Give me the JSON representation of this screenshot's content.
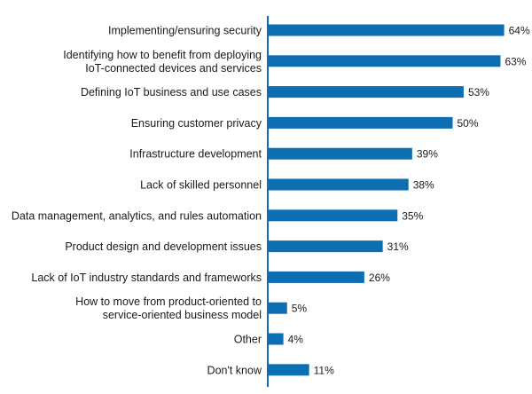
{
  "chart_data": {
    "type": "bar",
    "orientation": "horizontal",
    "categories": [
      "Implementing/ensuring security",
      "Identifying how to benefit from deploying IoT-connected devices and services",
      "Defining IoT business and use cases",
      "Ensuring customer privacy",
      "Infrastructure development",
      "Lack of skilled personnel",
      "Data management, analytics, and rules automation",
      "Product design and development issues",
      "Lack of IoT industry standards and frameworks",
      "How to move from product-oriented to service-oriented business model",
      "Other",
      "Don't know"
    ],
    "category_lines": [
      [
        "Implementing/ensuring security"
      ],
      [
        "Identifying how to benefit from deploying",
        "IoT-connected devices and services"
      ],
      [
        "Defining IoT business and use cases"
      ],
      [
        "Ensuring customer privacy"
      ],
      [
        "Infrastructure development"
      ],
      [
        "Lack of skilled personnel"
      ],
      [
        "Data management, analytics, and rules automation"
      ],
      [
        "Product design and development issues"
      ],
      [
        "Lack of IoT industry standards and frameworks"
      ],
      [
        "How to move from product-oriented to",
        "service-oriented business model"
      ],
      [
        "Other"
      ],
      [
        "Don't know"
      ]
    ],
    "values": [
      64,
      63,
      53,
      50,
      39,
      38,
      35,
      31,
      26,
      5,
      4,
      11
    ],
    "value_labels": [
      "64%",
      "63%",
      "53%",
      "50%",
      "39%",
      "38%",
      "35%",
      "31%",
      "26%",
      "5%",
      "4%",
      "11%"
    ],
    "title": "",
    "xlabel": "",
    "ylabel": "",
    "xlim": [
      0,
      70
    ],
    "grid": false,
    "legend": "none",
    "colors": {
      "bar": "#0e6eb2",
      "axis": "#0e6eb2"
    }
  }
}
